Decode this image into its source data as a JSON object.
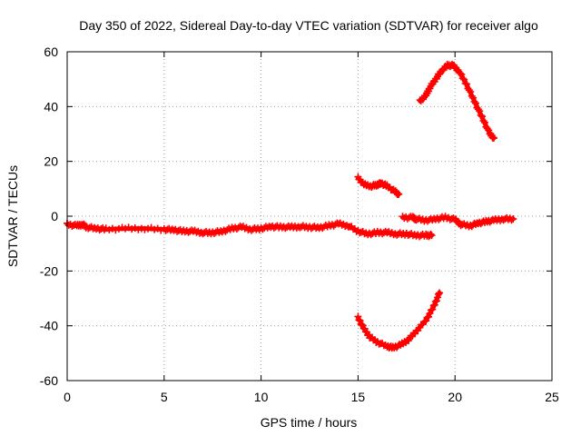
{
  "chart_data": {
    "type": "scatter",
    "title": "Day 350 of 2022, Sidereal Day-to-day VTEC variation (SDTVAR) for receiver algo",
    "xlabel": "GPS time / hours",
    "ylabel": "SDTVAR / TECUs",
    "xlim": [
      0,
      25
    ],
    "ylim": [
      -60,
      60
    ],
    "xticks": [
      "0",
      "5",
      "10",
      "15",
      "20",
      "25"
    ],
    "yticks": [
      "-60",
      "-40",
      "-20",
      "0",
      "20",
      "40",
      "60"
    ],
    "grid": true,
    "legend": "none",
    "marker": "plus",
    "color": "#ff0000",
    "series": [
      {
        "name": "main-band",
        "points": [
          [
            0.0,
            -3
          ],
          [
            0.5,
            -3.5
          ],
          [
            0.8,
            -3
          ],
          [
            1.0,
            -4
          ],
          [
            1.5,
            -4.5
          ],
          [
            2.0,
            -4.8
          ],
          [
            3.0,
            -4.5
          ],
          [
            4.0,
            -4.5
          ],
          [
            5.0,
            -4.8
          ],
          [
            5.5,
            -5
          ],
          [
            6.0,
            -5.5
          ],
          [
            6.5,
            -5.5
          ],
          [
            7.0,
            -6
          ],
          [
            7.5,
            -6
          ],
          [
            8.0,
            -5.5
          ],
          [
            8.5,
            -4.5
          ],
          [
            9.0,
            -4
          ],
          [
            9.5,
            -4.8
          ],
          [
            10.0,
            -4.5
          ],
          [
            10.5,
            -3.8
          ],
          [
            11.0,
            -4
          ],
          [
            11.5,
            -4
          ],
          [
            12.0,
            -3.8
          ],
          [
            12.5,
            -4
          ],
          [
            13.0,
            -4.2
          ],
          [
            13.5,
            -3.5
          ],
          [
            14.0,
            -2.8
          ],
          [
            14.5,
            -3.5
          ],
          [
            15.0,
            -5.5
          ],
          [
            15.5,
            -6.5
          ],
          [
            16.0,
            -6
          ],
          [
            16.5,
            -6
          ],
          [
            17.0,
            -6.5
          ],
          [
            17.5,
            -6.5
          ],
          [
            18.0,
            -7
          ],
          [
            18.5,
            -7
          ],
          [
            18.8,
            -7
          ]
        ]
      },
      {
        "name": "upper-short",
        "points": [
          [
            15.0,
            14
          ],
          [
            15.3,
            11.5
          ],
          [
            15.7,
            11
          ],
          [
            16.0,
            11.5
          ],
          [
            16.2,
            12
          ],
          [
            16.5,
            11
          ],
          [
            16.9,
            9
          ],
          [
            17.1,
            8
          ]
        ]
      },
      {
        "name": "near-zero-right",
        "points": [
          [
            17.3,
            -0.5
          ],
          [
            17.8,
            -0.5
          ],
          [
            18.0,
            -1
          ],
          [
            18.5,
            -1.5
          ],
          [
            19.0,
            -1
          ],
          [
            19.5,
            -0.5
          ],
          [
            20.0,
            -1.2
          ],
          [
            20.3,
            -3
          ],
          [
            20.8,
            -3.5
          ],
          [
            21.2,
            -2.5
          ],
          [
            21.6,
            -2
          ],
          [
            22.0,
            -1.5
          ],
          [
            22.5,
            -1
          ],
          [
            23.0,
            -1
          ]
        ]
      },
      {
        "name": "upper-arc",
        "points": [
          [
            18.2,
            42
          ],
          [
            18.5,
            44
          ],
          [
            18.7,
            47
          ],
          [
            19.0,
            50
          ],
          [
            19.3,
            53
          ],
          [
            19.6,
            55
          ],
          [
            19.9,
            55
          ],
          [
            20.2,
            53
          ],
          [
            20.6,
            48
          ],
          [
            21.0,
            42
          ],
          [
            21.4,
            36
          ],
          [
            21.8,
            30
          ],
          [
            22.0,
            28.5
          ]
        ]
      },
      {
        "name": "lower-arc",
        "points": [
          [
            15.0,
            -37
          ],
          [
            15.3,
            -41
          ],
          [
            15.6,
            -44
          ],
          [
            16.0,
            -46
          ],
          [
            16.5,
            -47.5
          ],
          [
            16.8,
            -48
          ],
          [
            17.2,
            -47
          ],
          [
            17.6,
            -45
          ],
          [
            18.0,
            -42
          ],
          [
            18.5,
            -38
          ],
          [
            18.9,
            -33
          ],
          [
            19.2,
            -28
          ]
        ]
      }
    ]
  }
}
